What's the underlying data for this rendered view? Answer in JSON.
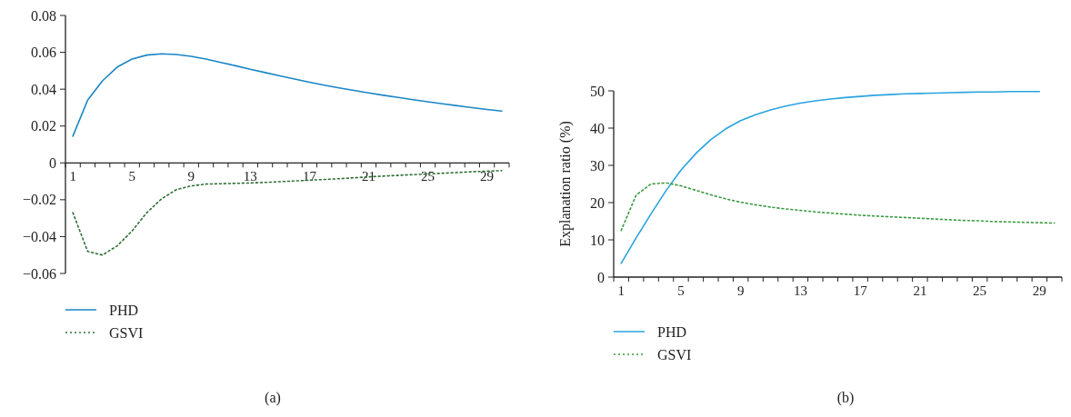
{
  "chart_data": [
    {
      "type": "line",
      "categories": [
        "1",
        null,
        null,
        null,
        "5",
        null,
        null,
        null,
        "9",
        null,
        null,
        null,
        "13",
        null,
        null,
        null,
        "17",
        null,
        null,
        null,
        "21",
        null,
        null,
        null,
        "25",
        null,
        null,
        null,
        "29",
        null
      ],
      "series": [
        {
          "name": "PHD",
          "color": "#1a86c4",
          "line_style": "solid",
          "values": [
            0.0145,
            0.034,
            0.0445,
            0.052,
            0.0563,
            0.0585,
            0.0592,
            0.0588,
            0.0578,
            0.0563,
            0.0545,
            0.0527,
            0.0508,
            0.049,
            0.0472,
            0.0455,
            0.0438,
            0.0422,
            0.0407,
            0.0393,
            0.038,
            0.0367,
            0.0355,
            0.0343,
            0.0332,
            0.0321,
            0.031,
            0.03,
            0.029,
            0.0281
          ]
        },
        {
          "name": "GSVI",
          "color": "#2f6e35",
          "line_style": "dotted",
          "values": [
            -0.027,
            -0.048,
            -0.05,
            -0.045,
            -0.037,
            -0.027,
            -0.0195,
            -0.0145,
            -0.0125,
            -0.0115,
            -0.0113,
            -0.0111,
            -0.0109,
            -0.0106,
            -0.0102,
            -0.0098,
            -0.0094,
            -0.009,
            -0.0086,
            -0.0081,
            -0.0076,
            -0.0072,
            -0.0068,
            -0.0064,
            -0.006,
            -0.0056,
            -0.0052,
            -0.0048,
            -0.0045,
            -0.0042
          ]
        }
      ],
      "ylim": [
        -0.06,
        0.08
      ],
      "yticks": [
        -0.06,
        -0.04,
        -0.02,
        0,
        0.02,
        0.04,
        0.06,
        0.08
      ],
      "grid": false,
      "legend": "bottom",
      "annotations": [
        "(a)"
      ]
    },
    {
      "type": "line",
      "categories": [
        "1",
        null,
        null,
        null,
        "5",
        null,
        null,
        null,
        "9",
        null,
        null,
        null,
        "13",
        null,
        null,
        null,
        "17",
        null,
        null,
        null,
        "21",
        null,
        null,
        null,
        "25",
        null,
        null,
        null,
        "29",
        null
      ],
      "series": [
        {
          "name": "PHD",
          "color": "#29a3df",
          "line_style": "solid",
          "values": [
            3.7,
            10.5,
            17,
            23.2,
            28.7,
            33.2,
            36.9,
            39.8,
            42,
            43.6,
            44.9,
            45.9,
            46.7,
            47.3,
            47.8,
            48.2,
            48.5,
            48.8,
            49,
            49.2,
            49.3,
            49.4,
            49.5,
            49.6,
            49.7,
            49.7,
            49.8,
            49.8,
            49.8,
            null
          ]
        },
        {
          "name": "GSVI",
          "color": "#3a9a40",
          "line_style": "dotted",
          "values": [
            12.5,
            22,
            25,
            25.3,
            24.5,
            23.3,
            22.1,
            21,
            20.1,
            19.4,
            18.8,
            18.3,
            17.9,
            17.5,
            17.2,
            16.9,
            16.6,
            16.4,
            16.2,
            16,
            15.8,
            15.6,
            15.4,
            15.2,
            15.1,
            14.9,
            14.8,
            14.7,
            14.6,
            14.5
          ]
        }
      ],
      "ylabel": "Explanation ratio (%)",
      "ylim": [
        0,
        50
      ],
      "yticks": [
        0,
        10,
        20,
        30,
        40,
        50
      ],
      "grid": false,
      "legend": "bottom",
      "annotations": [
        "(b)"
      ]
    }
  ]
}
